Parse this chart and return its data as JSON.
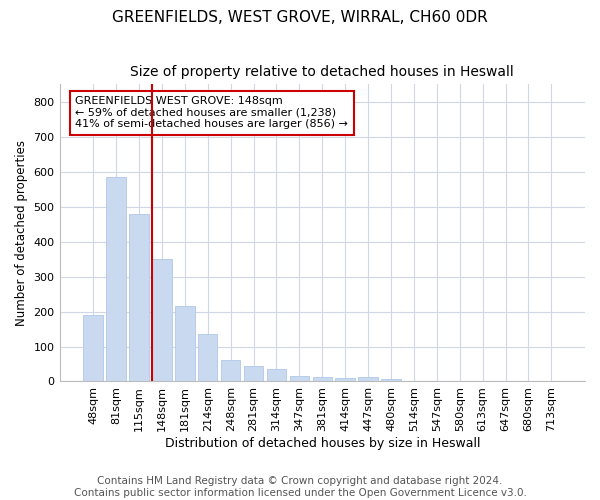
{
  "title_line1": "GREENFIELDS, WEST GROVE, WIRRAL, CH60 0DR",
  "title_line2": "Size of property relative to detached houses in Heswall",
  "xlabel": "Distribution of detached houses by size in Heswall",
  "ylabel": "Number of detached properties",
  "categories": [
    "48sqm",
    "81sqm",
    "115sqm",
    "148sqm",
    "181sqm",
    "214sqm",
    "248sqm",
    "281sqm",
    "314sqm",
    "347sqm",
    "381sqm",
    "414sqm",
    "447sqm",
    "480sqm",
    "514sqm",
    "547sqm",
    "580sqm",
    "613sqm",
    "647sqm",
    "680sqm",
    "713sqm"
  ],
  "values": [
    190,
    585,
    480,
    350,
    215,
    135,
    62,
    43,
    35,
    17,
    13,
    10,
    13,
    7,
    0,
    0,
    0,
    0,
    0,
    0,
    0
  ],
  "bar_color": "#c8d9f0",
  "bar_edge_color": "#b0c8e8",
  "vline_color": "#cc0000",
  "annotation_text": "GREENFIELDS WEST GROVE: 148sqm\n← 59% of detached houses are smaller (1,238)\n41% of semi-detached houses are larger (856) →",
  "annotation_box_color": "#ffffff",
  "annotation_box_edge_color": "#cc0000",
  "ylim": [
    0,
    850
  ],
  "yticks": [
    0,
    100,
    200,
    300,
    400,
    500,
    600,
    700,
    800
  ],
  "footer_line1": "Contains HM Land Registry data © Crown copyright and database right 2024.",
  "footer_line2": "Contains public sector information licensed under the Open Government Licence v3.0.",
  "background_color": "#ffffff",
  "grid_color": "#d0d8e8",
  "title1_fontsize": 11,
  "title2_fontsize": 10,
  "tick_fontsize": 8,
  "footer_fontsize": 7.5,
  "xlabel_fontsize": 9,
  "ylabel_fontsize": 8.5
}
